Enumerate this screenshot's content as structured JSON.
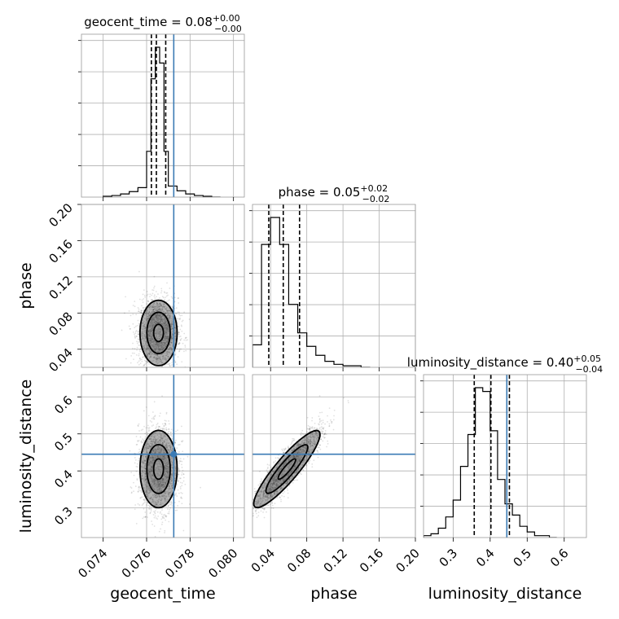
{
  "colors": {
    "truth": "#3b7bb5",
    "samples": "#000000",
    "grid": "#b0b0b0",
    "frame": "#999999"
  },
  "chart_data": {
    "type": "corner",
    "parameters": [
      "geocent_time",
      "phase",
      "luminosity_distance"
    ],
    "axis_labels": [
      "geocent_time",
      "phase",
      "luminosity_distance"
    ],
    "grid": true,
    "titles": [
      {
        "param": "geocent_time",
        "prefix": "geocent_time = ",
        "median": "0.08",
        "plus": "+0.00",
        "minus": "−0.00"
      },
      {
        "param": "phase",
        "prefix": "phase = ",
        "median": "0.05",
        "plus": "+0.02",
        "minus": "−0.02"
      },
      {
        "param": "luminosity_distance",
        "prefix": "luminosity_distance = ",
        "median": "0.40",
        "plus": "+0.05",
        "minus": "−0.04"
      }
    ],
    "ranges": {
      "geocent_time": [
        0.073,
        0.0805
      ],
      "phase": [
        0.02,
        0.2
      ],
      "luminosity_distance": [
        0.22,
        0.66
      ]
    },
    "ticks": {
      "geocent_time": {
        "values": [
          0.074,
          0.076,
          0.078,
          0.08
        ],
        "labels": [
          "0.074",
          "0.076",
          "0.078",
          "0.080"
        ]
      },
      "phase": {
        "values": [
          0.04,
          0.08,
          0.12,
          0.16,
          0.2
        ],
        "labels": [
          "0.04",
          "0.08",
          "0.12",
          "0.16",
          "0.20"
        ]
      },
      "luminosity_distance": {
        "values": [
          0.3,
          0.4,
          0.5,
          0.6
        ],
        "labels": [
          "0.3",
          "0.4",
          "0.5",
          "0.6"
        ]
      }
    },
    "truths": {
      "geocent_time": 0.07725,
      "phase": null,
      "luminosity_distance": 0.445
    },
    "quantiles": {
      "geocent_time": [
        0.07622,
        0.07645,
        0.07688
      ],
      "phase": [
        0.038,
        0.054,
        0.072
      ],
      "luminosity_distance": [
        0.357,
        0.402,
        0.452
      ]
    },
    "histograms": {
      "geocent_time": {
        "edges": [
          0.074,
          0.0744,
          0.0748,
          0.0752,
          0.0756,
          0.076,
          0.0762,
          0.0764,
          0.0766,
          0.0768,
          0.077,
          0.0774,
          0.0778,
          0.0782,
          0.0786,
          0.079,
          0.0794
        ],
        "counts": [
          1,
          2,
          4,
          7,
          12,
          58,
          150,
          190,
          170,
          58,
          14,
          8,
          4,
          2,
          1,
          0
        ]
      },
      "phase": {
        "edges": [
          0.02,
          0.03,
          0.04,
          0.05,
          0.06,
          0.07,
          0.08,
          0.09,
          0.1,
          0.11,
          0.12,
          0.13,
          0.14,
          0.15
        ],
        "counts": [
          15,
          82,
          100,
          82,
          42,
          23,
          14,
          8,
          4,
          2,
          1,
          1,
          0
        ]
      },
      "luminosity_distance": {
        "edges": [
          0.22,
          0.24,
          0.26,
          0.28,
          0.3,
          0.32,
          0.34,
          0.36,
          0.38,
          0.4,
          0.42,
          0.44,
          0.46,
          0.48,
          0.5,
          0.52,
          0.54,
          0.56,
          0.58
        ],
        "counts": [
          1,
          2,
          5,
          11,
          20,
          38,
          55,
          80,
          78,
          57,
          31,
          18,
          12,
          6,
          3,
          1,
          1,
          0
        ]
      }
    },
    "scatter_2d": [
      {
        "x": "geocent_time",
        "y": "phase",
        "x_mean": 0.07655,
        "x_sd": 0.00045,
        "y_mean": 0.058,
        "y_sd": 0.019,
        "corr": 0.0,
        "n_points": 2200
      },
      {
        "x": "geocent_time",
        "y": "luminosity_distance",
        "x_mean": 0.07655,
        "x_sd": 0.00045,
        "y_mean": 0.405,
        "y_sd": 0.055,
        "corr": 0.0,
        "n_points": 2200
      },
      {
        "x": "phase",
        "y": "luminosity_distance",
        "x_mean": 0.058,
        "x_sd": 0.019,
        "y_mean": 0.405,
        "y_sd": 0.055,
        "corr": 0.9,
        "n_points": 2200
      }
    ],
    "contour_levels": [
      0.5,
      1.2,
      1.9
    ]
  }
}
